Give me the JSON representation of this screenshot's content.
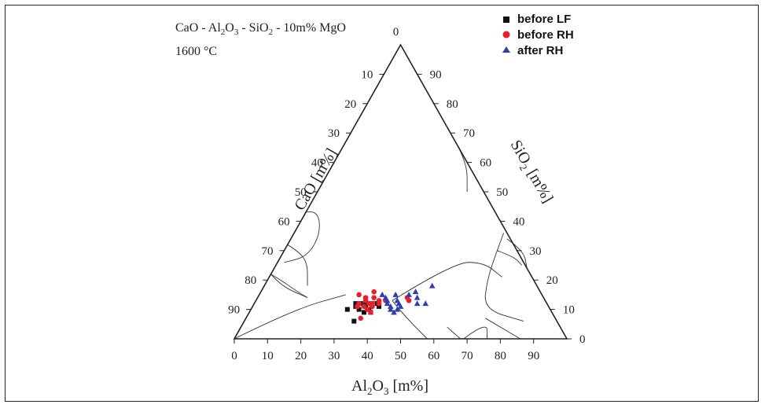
{
  "chart_data": {
    "type": "scatter",
    "subtype": "ternary",
    "title": {
      "system_parts": [
        "CaO - Al",
        "2",
        "O",
        "3",
        " - SiO",
        "2",
        " - 10m% MgO"
      ],
      "temperature": "1600 °C"
    },
    "axes": {
      "bottom": {
        "label_parts": [
          "Al",
          "2",
          "O",
          "3",
          " [m%]"
        ],
        "ticks": [
          "0",
          "10",
          "20",
          "30",
          "40",
          "50",
          "60",
          "70",
          "80",
          "90"
        ]
      },
      "left": {
        "label": "CaO [m%]",
        "ticks": [
          "10",
          "20",
          "30",
          "40",
          "50",
          "60",
          "70",
          "80",
          "90"
        ],
        "top_label": "0"
      },
      "right": {
        "label_parts": [
          "SiO",
          "2",
          " [m%]"
        ],
        "ticks": [
          "0",
          "10",
          "20",
          "30",
          "40",
          "50",
          "60",
          "70",
          "80",
          "90"
        ]
      }
    },
    "legend": {
      "position": "top-right",
      "entries": [
        {
          "label": "before LF",
          "marker": "square",
          "color": "#111111"
        },
        {
          "label": "before RH",
          "marker": "circle",
          "color": "#e8202a"
        },
        {
          "label": "after RH",
          "marker": "triangle",
          "color": "#2f3fb0"
        }
      ]
    },
    "series": [
      {
        "name": "before LF",
        "points": [
          {
            "Al2O3": 29,
            "SiO2": 10
          },
          {
            "Al2O3": 30.5,
            "SiO2": 12
          },
          {
            "Al2O3": 31,
            "SiO2": 11
          },
          {
            "Al2O3": 32,
            "SiO2": 12
          },
          {
            "Al2O3": 32.5,
            "SiO2": 10
          },
          {
            "Al2O3": 33.5,
            "SiO2": 12
          },
          {
            "Al2O3": 34,
            "SiO2": 11
          },
          {
            "Al2O3": 34.5,
            "SiO2": 9
          },
          {
            "Al2O3": 35.5,
            "SiO2": 12
          },
          {
            "Al2O3": 35.5,
            "SiO2": 10
          },
          {
            "Al2O3": 36.5,
            "SiO2": 9
          },
          {
            "Al2O3": 37,
            "SiO2": 12
          },
          {
            "Al2O3": 38,
            "SiO2": 11
          },
          {
            "Al2O3": 33,
            "SiO2": 6
          }
        ]
      },
      {
        "name": "before RH",
        "points": [
          {
            "Al2O3": 30,
            "SiO2": 15
          },
          {
            "Al2O3": 31.5,
            "SiO2": 12
          },
          {
            "Al2O3": 31.5,
            "SiO2": 11
          },
          {
            "Al2O3": 32.5,
            "SiO2": 14
          },
          {
            "Al2O3": 33,
            "SiO2": 13
          },
          {
            "Al2O3": 33.5,
            "SiO2": 11
          },
          {
            "Al2O3": 34,
            "SiO2": 16
          },
          {
            "Al2O3": 34.5,
            "SiO2": 12
          },
          {
            "Al2O3": 35,
            "SiO2": 14
          },
          {
            "Al2O3": 35,
            "SiO2": 10
          },
          {
            "Al2O3": 35.5,
            "SiO2": 12
          },
          {
            "Al2O3": 36,
            "SiO2": 11
          },
          {
            "Al2O3": 36.5,
            "SiO2": 9
          },
          {
            "Al2O3": 37,
            "SiO2": 13
          },
          {
            "Al2O3": 37.5,
            "SiO2": 12
          },
          {
            "Al2O3": 34.5,
            "SiO2": 7
          },
          {
            "Al2O3": 45,
            "SiO2": 14
          },
          {
            "Al2O3": 46,
            "SiO2": 13
          },
          {
            "Al2O3": 39,
            "SiO2": 13
          }
        ]
      },
      {
        "name": "after RH",
        "points": [
          {
            "Al2O3": 37,
            "SiO2": 15
          },
          {
            "Al2O3": 38.5,
            "SiO2": 14
          },
          {
            "Al2O3": 39.5,
            "SiO2": 13
          },
          {
            "Al2O3": 40,
            "SiO2": 12
          },
          {
            "Al2O3": 41,
            "SiO2": 15
          },
          {
            "Al2O3": 41.5,
            "SiO2": 11
          },
          {
            "Al2O3": 42,
            "SiO2": 10
          },
          {
            "Al2O3": 42.5,
            "SiO2": 13
          },
          {
            "Al2O3": 43.5,
            "SiO2": 9
          },
          {
            "Al2O3": 43.5,
            "SiO2": 12
          },
          {
            "Al2O3": 44.5,
            "SiO2": 11
          },
          {
            "Al2O3": 45,
            "SiO2": 15
          },
          {
            "Al2O3": 46.5,
            "SiO2": 16
          },
          {
            "Al2O3": 48,
            "SiO2": 14
          },
          {
            "Al2O3": 49,
            "SiO2": 12
          },
          {
            "Al2O3": 50.5,
            "SiO2": 18
          },
          {
            "Al2O3": 51.5,
            "SiO2": 12
          },
          {
            "Al2O3": 44,
            "SiO2": 10
          }
        ]
      }
    ],
    "phase_boundaries": [
      [
        [
          60,
          40
        ],
        [
          65,
          35
        ],
        [
          70,
          30
        ],
        [
          78,
          22
        ]
      ],
      [
        [
          33,
          67
        ],
        [
          40,
          60
        ],
        [
          45,
          50
        ]
      ],
      [
        [
          0,
          43
        ],
        [
          3,
          44
        ],
        [
          8,
          36
        ],
        [
          8,
          28
        ],
        [
          2,
          26
        ]
      ],
      [
        [
          0,
          32
        ],
        [
          4,
          30
        ],
        [
          9,
          26
        ],
        [
          13,
          18
        ]
      ],
      [
        [
          0,
          22
        ],
        [
          4,
          20
        ],
        [
          11,
          16
        ],
        [
          15,
          14
        ]
      ],
      [
        [
          0,
          22
        ],
        [
          5,
          18
        ],
        [
          15,
          14
        ]
      ],
      [
        [
          0,
          0
        ],
        [
          13,
          10
        ],
        [
          26,
          15
        ]
      ],
      [
        [
          41,
          13
        ],
        [
          53,
          26
        ],
        [
          62,
          26
        ],
        [
          70,
          21
        ]
      ],
      [
        [
          41,
          13
        ],
        [
          47,
          8
        ],
        [
          58,
          0
        ]
      ],
      [
        [
          63,
          36
        ],
        [
          64,
          30
        ],
        [
          66,
          20
        ],
        [
          70,
          10
        ],
        [
          84,
          6
        ]
      ],
      [
        [
          64,
          30
        ],
        [
          70,
          28
        ],
        [
          74,
          25
        ]
      ],
      [
        [
          65,
          34
        ],
        [
          72,
          30
        ],
        [
          76,
          24
        ]
      ],
      [
        [
          69,
          0
        ],
        [
          73,
          6
        ],
        [
          76,
          0
        ]
      ],
      [
        [
          72,
          7
        ],
        [
          86,
          0
        ]
      ],
      [
        [
          62,
          4
        ],
        [
          68,
          0
        ]
      ]
    ]
  }
}
